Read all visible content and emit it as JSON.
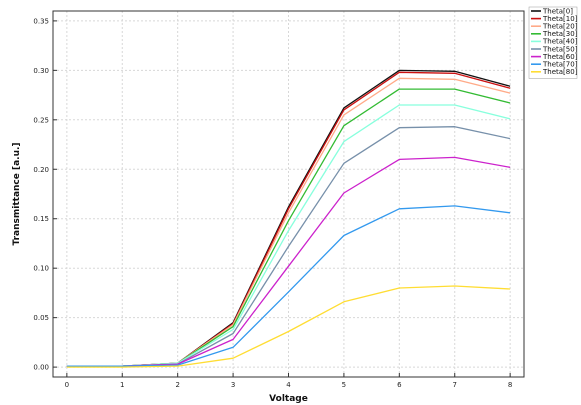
{
  "chart_data": {
    "type": "line",
    "title": "",
    "xlabel": "Voltage",
    "ylabel": "Transmittance [a.u.]",
    "xlim": [
      -0.25,
      8.25
    ],
    "ylim": [
      -0.01,
      0.36
    ],
    "xticks": [
      "0",
      "1",
      "2",
      "3",
      "4",
      "5",
      "6",
      "7",
      "8"
    ],
    "yticks": [
      "0.00",
      "0.05",
      "0.10",
      "0.15",
      "0.20",
      "0.25",
      "0.30",
      "0.35"
    ],
    "grid": true,
    "legend_position": "top-right",
    "x": [
      0,
      1,
      2,
      3,
      4,
      5,
      6,
      7,
      8
    ],
    "series": [
      {
        "name": "Theta[0]",
        "color": "#111111",
        "values": [
          0.001,
          0.001,
          0.004,
          0.045,
          0.162,
          0.262,
          0.3,
          0.299,
          0.284
        ]
      },
      {
        "name": "Theta[10]",
        "color": "#cc1111",
        "values": [
          0.001,
          0.001,
          0.004,
          0.044,
          0.16,
          0.26,
          0.298,
          0.297,
          0.282
        ]
      },
      {
        "name": "Theta[20]",
        "color": "#ffaa88",
        "values": [
          0.001,
          0.001,
          0.004,
          0.043,
          0.156,
          0.255,
          0.292,
          0.291,
          0.277
        ]
      },
      {
        "name": "Theta[30]",
        "color": "#33bb33",
        "values": [
          0.001,
          0.001,
          0.004,
          0.041,
          0.148,
          0.244,
          0.281,
          0.281,
          0.267
        ]
      },
      {
        "name": "Theta[40]",
        "color": "#88ffdd",
        "values": [
          0.001,
          0.001,
          0.004,
          0.038,
          0.138,
          0.228,
          0.265,
          0.265,
          0.251
        ]
      },
      {
        "name": "Theta[50]",
        "color": "#7790aa",
        "values": [
          0.001,
          0.001,
          0.003,
          0.034,
          0.122,
          0.206,
          0.242,
          0.243,
          0.231
        ]
      },
      {
        "name": "Theta[60]",
        "color": "#cc22cc",
        "values": [
          0.001,
          0.001,
          0.003,
          0.028,
          0.102,
          0.176,
          0.21,
          0.212,
          0.202
        ]
      },
      {
        "name": "Theta[70]",
        "color": "#3399ee",
        "values": [
          0.001,
          0.001,
          0.002,
          0.02,
          0.076,
          0.133,
          0.16,
          0.163,
          0.156
        ]
      },
      {
        "name": "Theta[80]",
        "color": "#ffdd33",
        "values": [
          0.0,
          0.0,
          0.001,
          0.009,
          0.036,
          0.066,
          0.08,
          0.082,
          0.079
        ]
      }
    ]
  }
}
